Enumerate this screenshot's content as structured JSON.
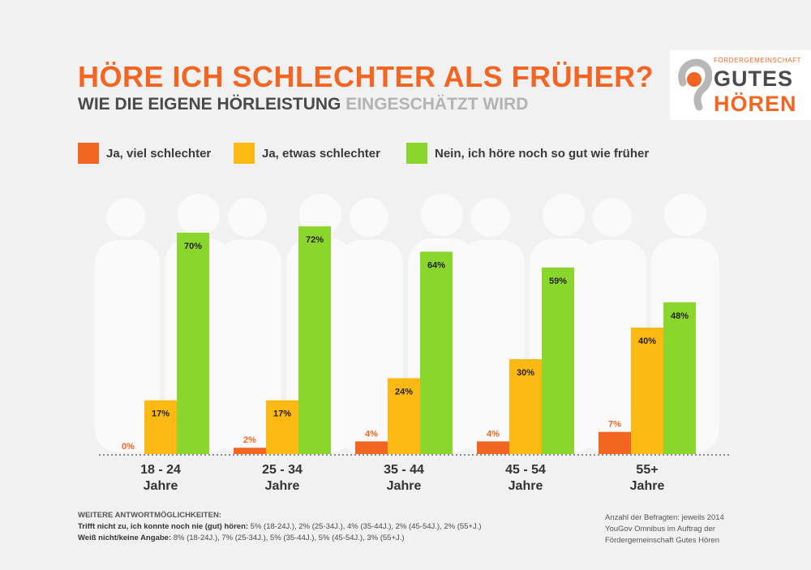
{
  "title": "HÖRE ICH SCHLECHTER ALS FRÜHER?",
  "subtitle_dark": "WIE DIE EIGENE HÖRLEISTUNG",
  "subtitle_light": "EINGESCHÄTZT WIRD",
  "logo": {
    "org": "FÖRDERGEMEINSCHAFT",
    "word1": "GUTES",
    "word2": "HÖREN",
    "icon": "ear-icon"
  },
  "colors": {
    "red": "#f26522",
    "orange": "#fdb913",
    "green": "#8bd62d",
    "silhouette": "#fafafa"
  },
  "chart_data": {
    "type": "bar",
    "categories": [
      "18 - 24\nJahre",
      "25 - 34\nJahre",
      "35 - 44\nJahre",
      "45 - 54\nJahre",
      "55+\nJahre"
    ],
    "category_lines": [
      [
        "18 - 24",
        "Jahre"
      ],
      [
        "25 - 34",
        "Jahre"
      ],
      [
        "35 - 44",
        "Jahre"
      ],
      [
        "45 - 54",
        "Jahre"
      ],
      [
        "55+",
        "Jahre"
      ]
    ],
    "series": [
      {
        "name": "Ja, viel schlechter",
        "values": [
          0,
          2,
          4,
          4,
          7
        ],
        "labels": [
          "0%",
          "2%",
          "4%",
          "4%",
          "7%"
        ]
      },
      {
        "name": "Ja, etwas schlechter",
        "values": [
          17,
          17,
          24,
          30,
          40
        ],
        "labels": [
          "17%",
          "17%",
          "24%",
          "30%",
          "40%"
        ]
      },
      {
        "name": "Nein, ich höre noch so gut wie früher",
        "values": [
          70,
          72,
          64,
          59,
          48
        ],
        "labels": [
          "70%",
          "72%",
          "64%",
          "59%",
          "48%"
        ]
      }
    ],
    "title": "HÖRE ICH SCHLECHTER ALS FRÜHER?",
    "xlabel": "",
    "ylabel": "",
    "ylim": [
      0,
      100
    ],
    "unit": "%"
  },
  "notes": {
    "heading": "WEITERE ANTWORTMÖGLICHKEITEN:",
    "line1_bold": "Trifft nicht zu, ich konnte noch nie (gut) hören:",
    "line1_rest": " 5% (18-24J.), 2% (25-34J.), 4% (35-44J.), 2% (45-54J.), 2% (55+J.)",
    "line2_bold": "Weiß nicht/keine Angabe:",
    "line2_rest": " 8% (18-24J.), 7% (25-34J.), 5% (35-44J.), 5% (45-54J.), 3% (55+J.)"
  },
  "source": {
    "line1": "Anzahl der Befragten: jeweils 2014",
    "line2": "YouGov Omnibus im Auftrag der",
    "line3": "Fördergemeinschaft Gutes Hören"
  }
}
